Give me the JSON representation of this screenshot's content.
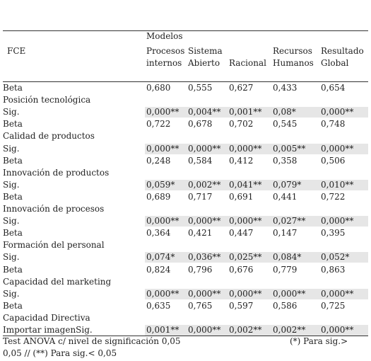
{
  "table": {
    "group": "Modelos",
    "columns": [
      "FCE",
      "Procesos internos",
      "Sistema Abierto",
      "Racional",
      "Recursos Humanos",
      "Resultado Global"
    ],
    "rows": [
      {
        "label": "Beta",
        "values": [
          "0,680",
          "0,555",
          "0,627",
          "0,433",
          "0,654"
        ]
      },
      {
        "label": "Posición tecnológica"
      },
      {
        "label": "Sig.",
        "values": [
          "0,000**",
          "0,004**",
          "0,001**",
          "0,08*",
          "0,000**"
        ]
      },
      {
        "label": "Beta",
        "values": [
          "0,722",
          "0,678",
          "0,702",
          "0,545",
          "0,748"
        ]
      },
      {
        "label": "Calidad de productos"
      },
      {
        "label": "Sig.",
        "values": [
          "0,000**",
          "0,000**",
          "0,000**",
          "0,005**",
          "0,000**"
        ]
      },
      {
        "label": "Beta",
        "values": [
          "0,248",
          "0,584",
          "0,412",
          "0,358",
          "0,506"
        ]
      },
      {
        "label": "Innovación de productos"
      },
      {
        "label": "Sig.",
        "values": [
          "0,059*",
          "0,002**",
          "0,041**",
          "0,079*",
          "0,010**"
        ]
      },
      {
        "label": "Beta",
        "values": [
          "0,689",
          "0,717",
          "0,691",
          "0,441",
          "0,722"
        ]
      },
      {
        "label": "Innovación de procesos"
      },
      {
        "label": "Sig.",
        "values": [
          "0,000**",
          "0,000**",
          "0,000**",
          "0,027**",
          "0,000**"
        ]
      },
      {
        "label": "Beta",
        "values": [
          "0,364",
          "0,421",
          "0,447",
          "0,147",
          "0,395"
        ]
      },
      {
        "label": "Formación del personal"
      },
      {
        "label": "Sig.",
        "values": [
          "0,074*",
          "0,036**",
          "0,025**",
          "0,084*",
          "0,052*"
        ]
      },
      {
        "label": "Beta",
        "values": [
          "0,824",
          "0,796",
          "0,676",
          "0,779",
          "0,863"
        ]
      },
      {
        "label": "Capacidad del marketing"
      },
      {
        "label": "Sig.",
        "values": [
          "0,000**",
          "0,000**",
          "0,000**",
          "0,000**",
          "0,000**"
        ]
      },
      {
        "label": "Beta",
        "values": [
          "0,635",
          "0,765",
          "0,597",
          "0,586",
          "0,725"
        ]
      },
      {
        "label": "Capacidad Directiva"
      },
      {
        "label": "Importar imagenSig.",
        "values": [
          "0,001**",
          "0,000**",
          "0,002**",
          "0,002**",
          "0,000**"
        ]
      }
    ],
    "footer": [
      "Test ANOVA c/ nivel de significación 0,05",
      "(*) Para sig.>",
      "0,05 // (**) Para sig.< 0,05"
    ]
  }
}
